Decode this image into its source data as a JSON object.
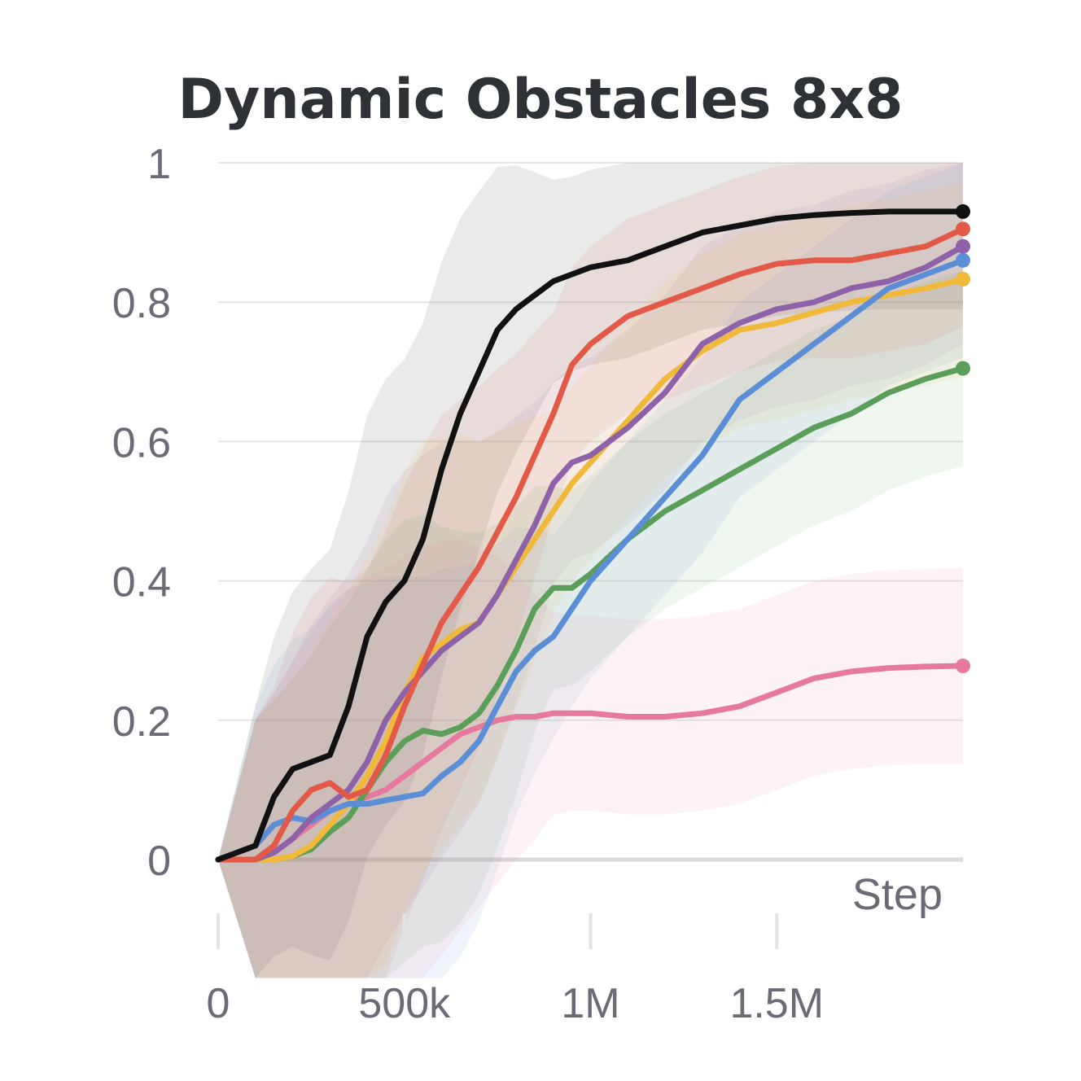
{
  "chart_data": {
    "type": "line",
    "title": "Dynamic Obstacles 8x8",
    "xlabel": "Step",
    "ylabel": "",
    "xlim": [
      0,
      2000000
    ],
    "ylim": [
      -0.13,
      1.0
    ],
    "x_ticks": [
      {
        "value": 0,
        "label": "0"
      },
      {
        "value": 500000,
        "label": "500k"
      },
      {
        "value": 1000000,
        "label": "1M"
      },
      {
        "value": 1500000,
        "label": "1.5M"
      }
    ],
    "y_ticks": [
      {
        "value": 0,
        "label": "0"
      },
      {
        "value": 0.2,
        "label": "0.2"
      },
      {
        "value": 0.4,
        "label": "0.4"
      },
      {
        "value": 0.6,
        "label": "0.6"
      },
      {
        "value": 0.8,
        "label": "0.8"
      },
      {
        "value": 1,
        "label": "1"
      }
    ],
    "x": [
      0,
      100000,
      150000,
      200000,
      250000,
      300000,
      350000,
      400000,
      450000,
      500000,
      550000,
      600000,
      650000,
      700000,
      750000,
      800000,
      850000,
      900000,
      950000,
      1000000,
      1100000,
      1200000,
      1300000,
      1400000,
      1500000,
      1600000,
      1700000,
      1800000,
      1900000,
      2000000
    ],
    "series": [
      {
        "name": "black",
        "color": "#111111",
        "values": [
          0,
          0.02,
          0.09,
          0.13,
          0.14,
          0.15,
          0.22,
          0.32,
          0.37,
          0.4,
          0.46,
          0.56,
          0.64,
          0.7,
          0.76,
          0.79,
          0.81,
          0.83,
          0.84,
          0.85,
          0.86,
          0.88,
          0.9,
          0.91,
          0.92,
          0.925,
          0.928,
          0.93,
          0.93,
          0.93
        ]
      },
      {
        "name": "red",
        "color": "#e25a47",
        "values": [
          0,
          0,
          0.02,
          0.07,
          0.1,
          0.11,
          0.09,
          0.1,
          0.15,
          0.22,
          0.28,
          0.34,
          0.38,
          0.42,
          0.47,
          0.52,
          0.58,
          0.64,
          0.71,
          0.74,
          0.78,
          0.8,
          0.82,
          0.84,
          0.855,
          0.86,
          0.86,
          0.87,
          0.88,
          0.905
        ]
      },
      {
        "name": "purple",
        "color": "#8e62a8",
        "values": [
          0,
          0,
          0.01,
          0.03,
          0.06,
          0.08,
          0.1,
          0.14,
          0.2,
          0.24,
          0.27,
          0.3,
          0.32,
          0.34,
          0.38,
          0.43,
          0.48,
          0.54,
          0.57,
          0.58,
          0.62,
          0.67,
          0.74,
          0.77,
          0.79,
          0.8,
          0.82,
          0.83,
          0.85,
          0.88
        ]
      },
      {
        "name": "blue",
        "color": "#5b8ed6",
        "values": [
          0,
          0.02,
          0.05,
          0.06,
          0.055,
          0.07,
          0.08,
          0.08,
          0.085,
          0.09,
          0.095,
          0.12,
          0.14,
          0.17,
          0.22,
          0.27,
          0.3,
          0.32,
          0.36,
          0.4,
          0.46,
          0.52,
          0.58,
          0.66,
          0.7,
          0.74,
          0.78,
          0.82,
          0.84,
          0.86
        ]
      },
      {
        "name": "yellow",
        "color": "#f1b93a",
        "values": [
          0,
          0,
          0,
          0.005,
          0.02,
          0.05,
          0.08,
          0.12,
          0.17,
          0.24,
          0.29,
          0.31,
          0.33,
          0.34,
          0.38,
          0.42,
          0.46,
          0.5,
          0.54,
          0.57,
          0.63,
          0.69,
          0.73,
          0.76,
          0.77,
          0.785,
          0.8,
          0.81,
          0.82,
          0.833
        ]
      },
      {
        "name": "green",
        "color": "#5a9e5a",
        "values": [
          0,
          0,
          0,
          0.005,
          0.015,
          0.04,
          0.06,
          0.1,
          0.14,
          0.17,
          0.185,
          0.18,
          0.19,
          0.21,
          0.25,
          0.3,
          0.36,
          0.39,
          0.39,
          0.41,
          0.46,
          0.5,
          0.53,
          0.56,
          0.59,
          0.62,
          0.64,
          0.67,
          0.69,
          0.705
        ]
      },
      {
        "name": "pink",
        "color": "#e8799e",
        "values": [
          0,
          0,
          0.01,
          0.03,
          0.05,
          0.07,
          0.08,
          0.09,
          0.1,
          0.12,
          0.14,
          0.16,
          0.18,
          0.19,
          0.2,
          0.205,
          0.205,
          0.21,
          0.21,
          0.21,
          0.205,
          0.205,
          0.21,
          0.22,
          0.24,
          0.26,
          0.27,
          0.275,
          0.277,
          0.278
        ]
      }
    ]
  }
}
